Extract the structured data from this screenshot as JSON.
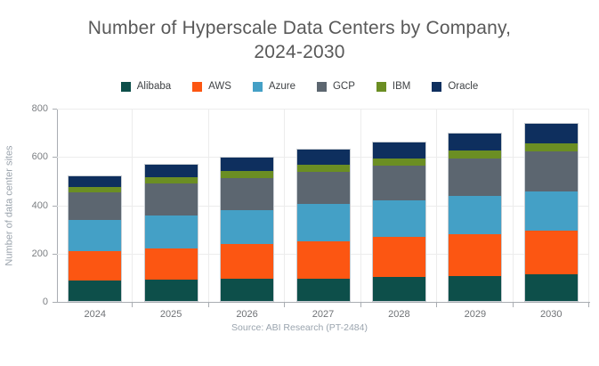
{
  "title": {
    "line1": "Number of Hyperscale Data Centers by Company,",
    "line2": "2024-2030"
  },
  "footer": {
    "source": "Source: ABI Research (PT-2484)"
  },
  "chart_data": {
    "type": "bar",
    "stacked": true,
    "title": "Number of Hyperscale Data Centers by Company, 2024-2030",
    "ylabel": "Number of data center sites",
    "xlabel": "",
    "ylim": [
      0,
      800
    ],
    "yticks": [
      0,
      200,
      400,
      600,
      800
    ],
    "grid": true,
    "legend_position": "top",
    "categories": [
      "2024",
      "2025",
      "2026",
      "2027",
      "2028",
      "2029",
      "2030"
    ],
    "series": [
      {
        "name": "Alibaba",
        "color": "#0d4f4a",
        "values": [
          85,
          90,
          95,
          95,
          100,
          105,
          110
        ]
      },
      {
        "name": "AWS",
        "color": "#fc5612",
        "values": [
          125,
          130,
          145,
          155,
          170,
          175,
          185
        ]
      },
      {
        "name": "Azure",
        "color": "#44a0c6",
        "values": [
          130,
          140,
          140,
          155,
          150,
          160,
          165
        ]
      },
      {
        "name": "GCP",
        "color": "#5c6670",
        "values": [
          115,
          135,
          135,
          135,
          145,
          155,
          165
        ]
      },
      {
        "name": "IBM",
        "color": "#6b8e23",
        "values": [
          25,
          25,
          30,
          30,
          30,
          35,
          35
        ]
      },
      {
        "name": "Oracle",
        "color": "#0e2f5e",
        "values": [
          45,
          50,
          55,
          65,
          70,
          70,
          80
        ]
      }
    ],
    "totals": [
      525,
      570,
      600,
      635,
      665,
      700,
      740
    ]
  }
}
